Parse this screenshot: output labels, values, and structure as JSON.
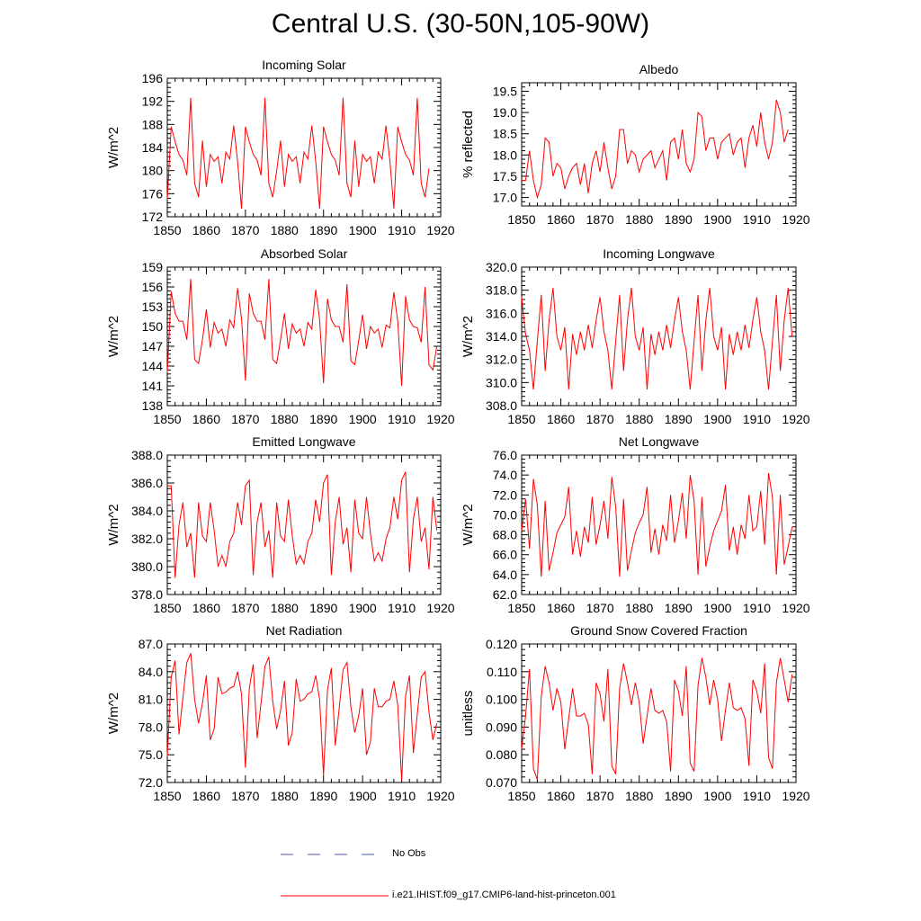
{
  "title": "Central U.S. (30-50N,105-90W)",
  "legend": [
    {
      "label": "No Obs",
      "color": "#4b56a8",
      "dash": "dashed"
    },
    {
      "label": "i.e21.IHIST.f09_g17.CMIP6-land-hist-princeton.001",
      "color": "#ff0000",
      "dash": "solid"
    }
  ],
  "chart_data": [
    {
      "type": "line",
      "title": "Incoming Solar",
      "ylabel": "W/m^2",
      "xlim": [
        1850,
        1920
      ],
      "ylim": [
        172,
        196
      ],
      "xticks": [
        1850,
        1860,
        1870,
        1880,
        1890,
        1900,
        1910,
        1920
      ],
      "xtick_labels": [
        "1850",
        "1860",
        "1870",
        "1880",
        "1890",
        "1900",
        "1910",
        "1920"
      ],
      "yticks": [
        172,
        176,
        180,
        184,
        188,
        192,
        196
      ],
      "ytick_labels": [
        "172",
        "176",
        "180",
        "184",
        "188",
        "192",
        "196"
      ],
      "x_start": 1850,
      "series": [
        {
          "color": "#ff0000",
          "values": [
            175.0,
            187.6,
            185.0,
            182.8,
            181.8,
            179.2,
            192.6,
            177.8,
            175.4,
            185.2,
            177.2,
            182.8,
            181.6,
            182.4,
            177.8,
            183.2,
            182.0,
            187.8,
            181.6,
            173.4,
            187.6,
            185.0,
            182.8,
            181.8,
            179.2,
            192.6,
            177.8,
            175.4,
            180.0,
            185.2,
            177.2,
            182.8,
            181.6,
            182.4,
            177.8,
            183.2,
            182.0,
            187.8,
            181.6,
            173.4,
            187.6,
            185.0,
            182.8,
            181.8,
            179.2,
            192.6,
            177.8,
            175.4,
            185.2,
            177.2,
            182.8,
            181.6,
            182.4,
            177.8,
            183.2,
            182.0,
            187.8,
            181.6,
            173.4,
            187.6,
            185.0,
            182.8,
            181.8,
            179.2,
            192.6,
            177.8,
            175.4,
            180.4
          ]
        }
      ]
    },
    {
      "type": "line",
      "title": "Albedo",
      "ylabel": "% reflected",
      "xlim": [
        1850,
        1920
      ],
      "ylim": [
        16.8,
        19.7
      ],
      "xticks": [
        1850,
        1860,
        1870,
        1880,
        1890,
        1900,
        1910,
        1920
      ],
      "xtick_labels": [
        "1850",
        "1860",
        "1870",
        "1880",
        "1890",
        "1900",
        "1910",
        "1920"
      ],
      "yticks": [
        17.0,
        17.5,
        18.0,
        18.5,
        19.0,
        19.5
      ],
      "ytick_labels": [
        "17.0",
        "17.5",
        "18.0",
        "18.5",
        "19.0",
        "19.5"
      ],
      "x_start": 1850,
      "series": [
        {
          "color": "#ff0000",
          "values": [
            17.4,
            17.4,
            18.1,
            17.4,
            17.0,
            17.3,
            18.4,
            18.3,
            17.5,
            17.8,
            17.7,
            17.2,
            17.5,
            17.7,
            17.8,
            17.3,
            17.8,
            17.1,
            17.8,
            18.1,
            17.6,
            18.3,
            17.7,
            17.2,
            17.5,
            18.6,
            18.6,
            17.8,
            18.1,
            18.0,
            17.6,
            17.9,
            18.0,
            18.1,
            17.7,
            17.9,
            18.1,
            17.4,
            18.3,
            18.4,
            17.9,
            18.6,
            17.8,
            17.6,
            17.9,
            19.0,
            18.9,
            18.1,
            18.4,
            18.4,
            17.9,
            18.3,
            18.4,
            18.5,
            18.0,
            18.3,
            18.4,
            17.7,
            18.4,
            18.7,
            18.2,
            19.0,
            18.3,
            17.9,
            18.3,
            19.3,
            19.0,
            18.3,
            18.6
          ]
        }
      ]
    },
    {
      "type": "line",
      "title": "Absorbed Solar",
      "ylabel": "W/m^2",
      "xlim": [
        1850,
        1920
      ],
      "ylim": [
        138,
        159
      ],
      "xticks": [
        1850,
        1860,
        1870,
        1880,
        1890,
        1900,
        1910,
        1920
      ],
      "xtick_labels": [
        "1850",
        "1860",
        "1870",
        "1880",
        "1890",
        "1900",
        "1910",
        "1920"
      ],
      "yticks": [
        138,
        141,
        144,
        147,
        150,
        153,
        156,
        159
      ],
      "ytick_labels": [
        "138",
        "141",
        "144",
        "147",
        "150",
        "153",
        "156",
        "159"
      ],
      "x_start": 1850,
      "series": [
        {
          "color": "#ff0000",
          "values": [
            143.0,
            155.3,
            152.0,
            150.8,
            150.8,
            148.0,
            157.2,
            145.0,
            144.4,
            148.0,
            152.6,
            146.8,
            150.6,
            149.0,
            149.6,
            147.0,
            151.0,
            149.8,
            155.8,
            151.2,
            141.8,
            155.0,
            152.0,
            150.8,
            150.8,
            148.0,
            157.2,
            145.0,
            144.4,
            148.0,
            152.0,
            146.6,
            150.4,
            149.0,
            149.6,
            147.0,
            150.6,
            149.6,
            155.6,
            151.0,
            141.4,
            154.2,
            151.0,
            150.0,
            150.0,
            147.6,
            156.4,
            144.8,
            144.2,
            147.8,
            151.8,
            146.6,
            150.0,
            149.0,
            149.6,
            146.8,
            150.2,
            149.8,
            155.2,
            150.8,
            141.0,
            154.6,
            151.0,
            150.0,
            149.8,
            147.6,
            156.0,
            144.2,
            143.4,
            147.0
          ]
        }
      ]
    },
    {
      "type": "line",
      "title": "Incoming Longwave",
      "ylabel": "W/m^2",
      "xlim": [
        1850,
        1920
      ],
      "ylim": [
        308,
        320
      ],
      "xticks": [
        1850,
        1860,
        1870,
        1880,
        1890,
        1900,
        1910,
        1920
      ],
      "xtick_labels": [
        "1850",
        "1860",
        "1870",
        "1880",
        "1890",
        "1900",
        "1910",
        "1920"
      ],
      "yticks": [
        308.0,
        310.0,
        312.0,
        314.0,
        316.0,
        318.0,
        320.0
      ],
      "ytick_labels": [
        "308.0",
        "310.0",
        "312.0",
        "314.0",
        "316.0",
        "318.0",
        "320.0"
      ],
      "x_start": 1850,
      "series": [
        {
          "color": "#ff0000",
          "values": [
            317.4,
            314.2,
            312.8,
            309.4,
            313.6,
            317.6,
            311.0,
            315.4,
            318.2,
            314.0,
            312.8,
            314.8,
            309.4,
            314.2,
            312.4,
            314.4,
            312.8,
            315.0,
            313.0,
            315.4,
            317.4,
            314.4,
            312.8,
            309.4,
            313.6,
            317.6,
            311.0,
            315.4,
            318.2,
            314.0,
            312.8,
            314.8,
            309.4,
            314.2,
            312.4,
            314.4,
            312.8,
            315.0,
            313.0,
            315.4,
            317.4,
            314.4,
            312.8,
            309.4,
            313.6,
            317.6,
            311.0,
            315.4,
            318.2,
            314.0,
            312.8,
            314.8,
            309.4,
            314.2,
            312.4,
            314.4,
            312.8,
            315.0,
            313.0,
            315.4,
            317.4,
            314.4,
            312.8,
            309.4,
            313.6,
            317.6,
            311.0,
            315.4,
            318.2,
            314.0
          ]
        }
      ]
    },
    {
      "type": "line",
      "title": "Emitted Longwave",
      "ylabel": "W/m^2",
      "xlim": [
        1850,
        1920
      ],
      "ylim": [
        378,
        388
      ],
      "xticks": [
        1850,
        1860,
        1870,
        1880,
        1890,
        1900,
        1910,
        1920
      ],
      "xtick_labels": [
        "1850",
        "1860",
        "1870",
        "1880",
        "1890",
        "1900",
        "1910",
        "1920"
      ],
      "yticks": [
        378.0,
        380.0,
        382.0,
        384.0,
        386.0,
        388.0
      ],
      "ytick_labels": [
        "378.0",
        "380.0",
        "382.0",
        "384.0",
        "386.0",
        "388.0"
      ],
      "x_start": 1850,
      "series": [
        {
          "color": "#ff0000",
          "values": [
            385.8,
            385.8,
            379.2,
            383.0,
            384.6,
            381.4,
            382.4,
            379.2,
            384.6,
            382.2,
            381.8,
            384.6,
            382.6,
            380.0,
            380.8,
            380.0,
            381.8,
            382.4,
            384.6,
            383.0,
            385.8,
            386.2,
            379.4,
            383.2,
            384.6,
            381.4,
            382.6,
            379.2,
            384.6,
            382.2,
            381.8,
            384.8,
            382.2,
            380.2,
            380.8,
            380.2,
            381.8,
            382.4,
            384.8,
            383.2,
            386.0,
            386.6,
            379.4,
            383.2,
            385.0,
            381.6,
            382.8,
            379.6,
            384.8,
            382.4,
            382.0,
            385.0,
            382.4,
            380.4,
            381.0,
            380.4,
            382.0,
            382.8,
            385.0,
            383.4,
            386.2,
            386.8,
            379.6,
            383.4,
            385.0,
            381.8,
            382.8,
            379.8,
            385.0,
            382.6
          ]
        }
      ]
    },
    {
      "type": "line",
      "title": "Net Longwave",
      "ylabel": "W/m^2",
      "xlim": [
        1850,
        1920
      ],
      "ylim": [
        62,
        76
      ],
      "xticks": [
        1850,
        1860,
        1870,
        1880,
        1890,
        1900,
        1910,
        1920
      ],
      "xtick_labels": [
        "1850",
        "1860",
        "1870",
        "1880",
        "1890",
        "1900",
        "1910",
        "1920"
      ],
      "yticks": [
        62.0,
        64.0,
        66.0,
        68.0,
        70.0,
        72.0,
        74.0,
        76.0
      ],
      "ytick_labels": [
        "62.0",
        "64.0",
        "66.0",
        "68.0",
        "70.0",
        "72.0",
        "74.0",
        "76.0"
      ],
      "x_start": 1850,
      "series": [
        {
          "color": "#ff0000",
          "values": [
            68.4,
            71.6,
            66.6,
            73.6,
            71.0,
            63.8,
            71.4,
            64.4,
            66.2,
            68.2,
            69.0,
            69.8,
            72.8,
            66.0,
            68.4,
            65.8,
            68.8,
            67.2,
            71.8,
            67.0,
            69.0,
            71.4,
            67.6,
            73.8,
            70.8,
            63.8,
            71.6,
            64.4,
            66.4,
            68.2,
            69.2,
            70.0,
            72.8,
            66.2,
            68.6,
            66.0,
            69.0,
            67.4,
            72.0,
            67.2,
            69.4,
            72.2,
            67.6,
            74.0,
            71.4,
            64.0,
            71.8,
            64.8,
            66.8,
            68.4,
            69.4,
            70.4,
            73.0,
            66.4,
            68.8,
            66.0,
            69.0,
            67.6,
            72.0,
            68.4,
            68.8,
            72.4,
            67.0,
            74.2,
            71.8,
            64.0,
            72.0,
            65.0,
            66.8,
            68.8
          ]
        }
      ]
    },
    {
      "type": "line",
      "title": "Net Radiation",
      "ylabel": "W/m^2",
      "xlim": [
        1850,
        1920
      ],
      "ylim": [
        72,
        87
      ],
      "xticks": [
        1850,
        1860,
        1870,
        1880,
        1890,
        1900,
        1910,
        1920
      ],
      "xtick_labels": [
        "1850",
        "1860",
        "1870",
        "1880",
        "1890",
        "1900",
        "1910",
        "1920"
      ],
      "yticks": [
        72.0,
        75.0,
        78.0,
        81.0,
        84.0,
        87.0
      ],
      "ytick_labels": [
        "72.0",
        "75.0",
        "78.0",
        "81.0",
        "84.0",
        "87.0"
      ],
      "x_start": 1850,
      "series": [
        {
          "color": "#ff0000",
          "values": [
            74.8,
            83.4,
            85.2,
            77.2,
            81.2,
            85.0,
            86.0,
            81.0,
            78.4,
            80.6,
            83.6,
            76.6,
            77.8,
            83.4,
            81.6,
            81.8,
            82.2,
            82.4,
            84.0,
            81.6,
            73.6,
            82.2,
            84.8,
            76.8,
            80.6,
            84.6,
            85.6,
            80.8,
            77.8,
            79.8,
            83.0,
            76.0,
            77.4,
            83.2,
            80.8,
            81.0,
            81.6,
            81.8,
            83.6,
            81.0,
            72.8,
            82.0,
            84.4,
            76.0,
            80.0,
            84.2,
            85.0,
            80.2,
            77.4,
            79.2,
            82.2,
            75.0,
            76.4,
            82.2,
            80.2,
            80.2,
            80.8,
            81.0,
            83.0,
            80.4,
            72.2,
            81.4,
            83.6,
            75.2,
            79.4,
            83.4,
            84.0,
            79.6,
            76.6,
            78.4
          ]
        }
      ]
    },
    {
      "type": "line",
      "title": "Ground Snow Covered Fraction",
      "ylabel": "unitless",
      "xlim": [
        1850,
        1920
      ],
      "ylim": [
        0.07,
        0.12
      ],
      "xticks": [
        1850,
        1860,
        1870,
        1880,
        1890,
        1900,
        1910,
        1920
      ],
      "xtick_labels": [
        "1850",
        "1860",
        "1870",
        "1880",
        "1890",
        "1900",
        "1910",
        "1920"
      ],
      "yticks": [
        0.07,
        0.08,
        0.09,
        0.1,
        0.11,
        0.12
      ],
      "ytick_labels": [
        "0.070",
        "0.080",
        "0.090",
        "0.100",
        "0.110",
        "0.120"
      ],
      "x_start": 1850,
      "series": [
        {
          "color": "#ff0000",
          "values": [
            0.082,
            0.094,
            0.111,
            0.075,
            0.071,
            0.101,
            0.112,
            0.106,
            0.096,
            0.104,
            0.099,
            0.082,
            0.093,
            0.104,
            0.094,
            0.094,
            0.095,
            0.091,
            0.073,
            0.106,
            0.102,
            0.092,
            0.111,
            0.076,
            0.073,
            0.104,
            0.113,
            0.106,
            0.098,
            0.106,
            0.099,
            0.084,
            0.094,
            0.104,
            0.096,
            0.095,
            0.096,
            0.092,
            0.074,
            0.107,
            0.103,
            0.094,
            0.112,
            0.077,
            0.074,
            0.105,
            0.115,
            0.108,
            0.098,
            0.107,
            0.1,
            0.085,
            0.096,
            0.106,
            0.097,
            0.096,
            0.097,
            0.093,
            0.076,
            0.107,
            0.103,
            0.095,
            0.113,
            0.079,
            0.075,
            0.106,
            0.115,
            0.107,
            0.099,
            0.109
          ]
        }
      ]
    }
  ]
}
